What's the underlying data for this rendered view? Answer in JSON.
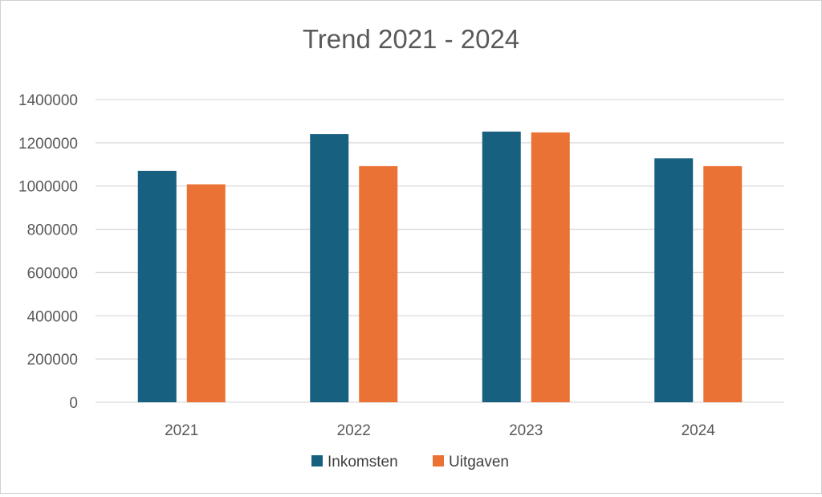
{
  "chart_data": {
    "type": "bar",
    "title": "Trend 2021 - 2024",
    "xlabel": "",
    "ylabel": "",
    "categories": [
      "2021",
      "2022",
      "2023",
      "2024"
    ],
    "series": [
      {
        "name": "Inkomsten",
        "color": "#17607f",
        "values": [
          1070000,
          1240000,
          1252000,
          1128000
        ]
      },
      {
        "name": "Uitgaven",
        "color": "#ea7234",
        "values": [
          1008000,
          1092000,
          1248000,
          1092000
        ]
      }
    ],
    "ylim": [
      0,
      1400000
    ],
    "yticks": [
      0,
      200000,
      400000,
      600000,
      800000,
      1000000,
      1200000,
      1400000
    ],
    "grid": true,
    "legend_position": "bottom"
  }
}
